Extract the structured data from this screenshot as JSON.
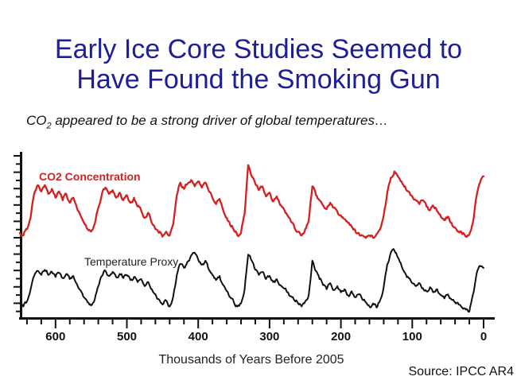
{
  "slide": {
    "title_line1": "Early Ice Core Studies Seemed to",
    "title_line2": "Have Found the Smoking Gun",
    "title_color": "#1e1e96",
    "subtitle": {
      "prefix": "CO",
      "subscript": "2",
      "rest": " appeared to be a strong driver of global temperatures…"
    },
    "source_label": "Source:  IPCC AR4"
  },
  "chart_data": {
    "type": "line",
    "title": "",
    "xlabel": "Thousands of Years Before 2005",
    "x_axis_reversed": true,
    "x_range": [
      650,
      0
    ],
    "x_ticks_labeled": [
      600,
      500,
      400,
      300,
      200,
      100,
      0
    ],
    "x_minor_tick_step": 20,
    "y_axis": "unlabeled tick marks only; two vertically offset traces",
    "y_tick_count": 20,
    "grid": false,
    "legend": "inline text labels above each trace",
    "x": {
      "start": 650,
      "step": -5,
      "count": 131
    },
    "series": [
      {
        "name": "CO2 Concentration",
        "color": "#d42020",
        "approx_units": "ppm (estimated; axis unlabeled)",
        "values": [
          190,
          186,
          196,
          214,
          252,
          266,
          256,
          266,
          252,
          260,
          246,
          256,
          242,
          252,
          238,
          246,
          230,
          218,
          206,
          196,
          192,
          204,
          230,
          252,
          262,
          252,
          258,
          246,
          254,
          242,
          250,
          238,
          246,
          232,
          226,
          214,
          222,
          206,
          196,
          190,
          184,
          192,
          186,
          204,
          250,
          270,
          260,
          268,
          274,
          264,
          272,
          262,
          270,
          256,
          246,
          236,
          244,
          226,
          214,
          202,
          194,
          186,
          190,
          220,
          298,
          280,
          268,
          258,
          264,
          248,
          254,
          240,
          248,
          234,
          228,
          218,
          208,
          198,
          192,
          186,
          196,
          210,
          264,
          250,
          242,
          234,
          228,
          238,
          230,
          224,
          218,
          212,
          206,
          200,
          194,
          190,
          186,
          182,
          186,
          182,
          188,
          196,
          218,
          254,
          278,
          288,
          280,
          272,
          264,
          256,
          248,
          242,
          236,
          242,
          232,
          226,
          232,
          224,
          216,
          210,
          216,
          206,
          198,
          192,
          188,
          184,
          188,
          206,
          248,
          270,
          280
        ]
      },
      {
        "name": "Temperature Proxy",
        "color": "#111111",
        "approx_units": "degC anomaly (estimated; axis unlabeled)",
        "values": [
          -7.2,
          -7.8,
          -6.8,
          -4.5,
          -1.8,
          -0.8,
          -1.6,
          -0.6,
          -1.6,
          -1.0,
          -2.0,
          -1.2,
          -2.2,
          -1.4,
          -2.4,
          -1.8,
          -3.4,
          -4.6,
          -6.0,
          -7.0,
          -7.6,
          -6.4,
          -3.8,
          -1.8,
          -0.8,
          -1.8,
          -1.0,
          -2.0,
          -1.4,
          -2.2,
          -1.6,
          -2.6,
          -2.0,
          -3.0,
          -2.4,
          -3.8,
          -3.0,
          -4.4,
          -5.4,
          -6.4,
          -7.4,
          -6.6,
          -7.8,
          -5.8,
          -1.6,
          0.6,
          -0.2,
          1.0,
          2.2,
          2.8,
          1.4,
          0.4,
          1.2,
          -0.6,
          -1.6,
          -2.6,
          -1.8,
          -3.6,
          -4.8,
          -6.0,
          -7.0,
          -7.8,
          -7.2,
          -4.5,
          2.4,
          1.2,
          -0.6,
          -1.6,
          -1.0,
          -2.4,
          -1.8,
          -3.0,
          -2.4,
          -3.6,
          -4.2,
          -5.0,
          -5.8,
          -6.6,
          -7.2,
          -7.8,
          -6.8,
          -5.5,
          1.2,
          -0.8,
          -2.4,
          -3.6,
          -4.4,
          -3.2,
          -4.6,
          -3.8,
          -5.0,
          -4.4,
          -5.6,
          -4.8,
          -6.0,
          -5.4,
          -6.4,
          -7.0,
          -7.8,
          -7.2,
          -8.0,
          -6.6,
          -4.0,
          0.5,
          2.8,
          3.2,
          1.8,
          0.2,
          -1.2,
          -2.2,
          -3.2,
          -3.8,
          -3.2,
          -4.2,
          -4.8,
          -4.0,
          -5.0,
          -4.4,
          -5.6,
          -6.2,
          -5.4,
          -6.4,
          -7.0,
          -7.4,
          -8.0,
          -8.4,
          -8.8,
          -5.5,
          -1.5,
          0.2,
          -0.2
        ]
      }
    ]
  }
}
